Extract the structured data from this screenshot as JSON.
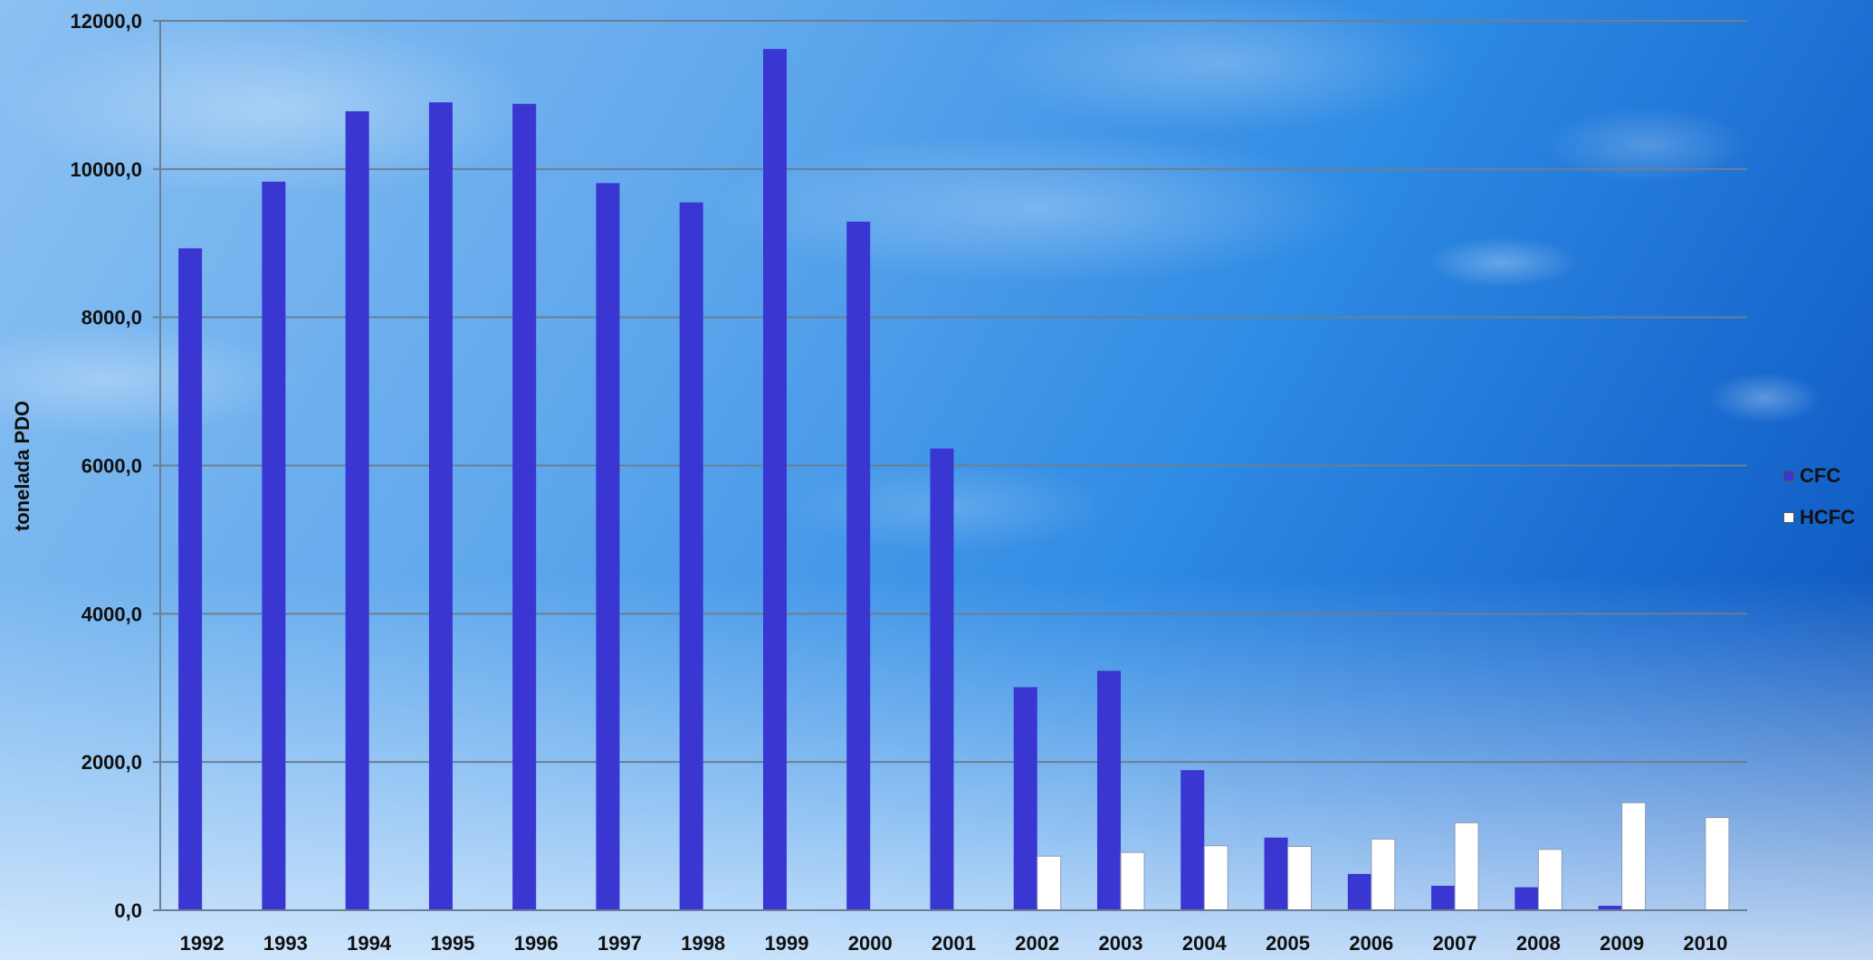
{
  "chart_data": {
    "type": "bar",
    "ylabel": "tonelada  PDO",
    "ylim": [
      0,
      12000
    ],
    "yticks": [
      "0,0",
      "2000,0",
      "4000,0",
      "6000,0",
      "8000,0",
      "10000,0",
      "12000,0"
    ],
    "categories": [
      "1992",
      "1993",
      "1994",
      "1995",
      "1996",
      "1997",
      "1998",
      "1999",
      "2000",
      "2001",
      "2002",
      "2003",
      "2004",
      "2005",
      "2006",
      "2007",
      "2008",
      "2009",
      "2010"
    ],
    "series": [
      {
        "name": "CFC",
        "color": "#3a36d2",
        "values": [
          8930,
          9830,
          10780,
          10900,
          10880,
          9810,
          9550,
          11620,
          9290,
          6230,
          3010,
          3230,
          1890,
          980,
          490,
          330,
          310,
          60,
          0
        ]
      },
      {
        "name": "HCFC",
        "color": "#ffffff",
        "values": [
          0,
          0,
          0,
          0,
          0,
          0,
          0,
          0,
          0,
          0,
          730,
          780,
          870,
          860,
          960,
          1180,
          820,
          1450,
          1250
        ]
      }
    ],
    "grid": true,
    "legend_position": "right"
  }
}
